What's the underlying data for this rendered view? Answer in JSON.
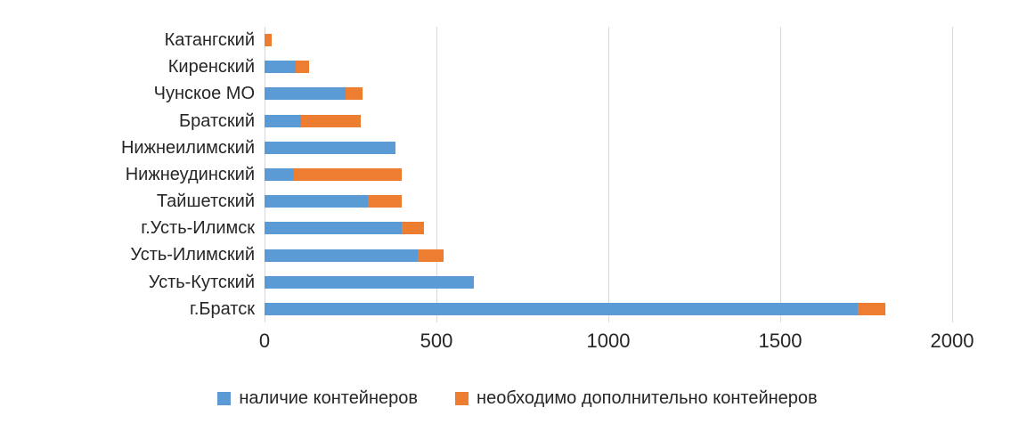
{
  "chart_data": {
    "type": "bar",
    "orientation": "horizontal",
    "stacked": true,
    "title": "",
    "xlabel": "",
    "ylabel": "",
    "categories": [
      "Катангский",
      "Киренский",
      "Чунское МО",
      "Братский",
      "Нижнеилимский",
      "Нижнеудинский",
      "Тайшетский",
      "г.Усть-Илимск",
      "Усть-Илимский",
      "Усть-Кутский",
      "г.Братск"
    ],
    "series": [
      {
        "name": "наличие контейнеров",
        "color": "#5b9bd5",
        "values": [
          0,
          90,
          235,
          105,
          380,
          85,
          300,
          400,
          445,
          610,
          1725
        ]
      },
      {
        "name": "необходимо дополнительно контейнеров",
        "color": "#ed7d31",
        "values": [
          20,
          40,
          50,
          175,
          0,
          315,
          100,
          65,
          75,
          0,
          80
        ]
      }
    ],
    "xlim": [
      0,
      2000
    ],
    "xticks": [
      0,
      500,
      1000,
      1500,
      2000
    ],
    "grid": true,
    "gridline_color": "#d9d9d9",
    "text_color": "#262626",
    "legend_position": "bottom"
  }
}
